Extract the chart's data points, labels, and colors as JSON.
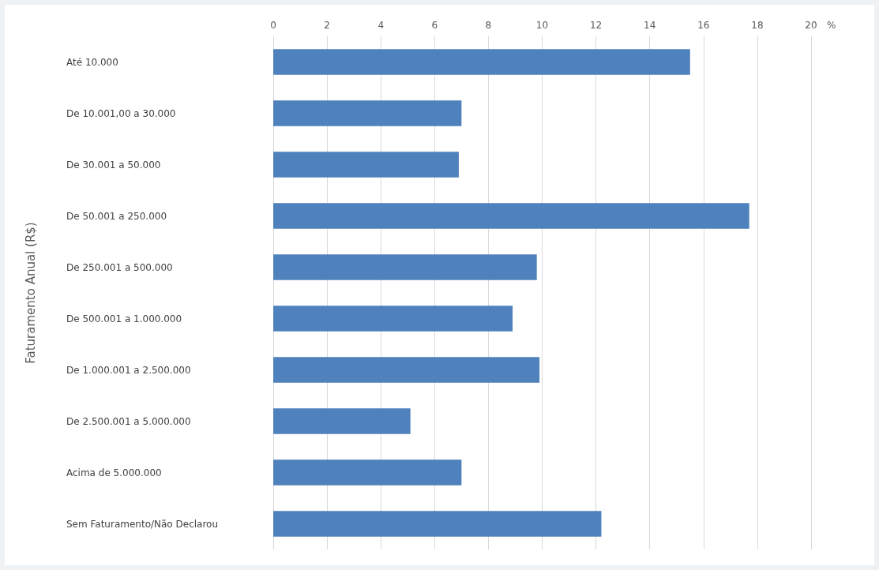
{
  "chart_data": {
    "type": "bar",
    "orientation": "horizontal",
    "ylabel": "Faturamento Anual (R$)",
    "xlabel": "%",
    "categories": [
      "Até 10.000",
      "De 10.001,00 a 30.000",
      "De 30.001 a 50.000",
      "De 50.001 a 250.000",
      "De 250.001 a 500.000",
      "De 500.001 a 1.000.000",
      "De 1.000.001 a 2.500.000",
      "De 2.500.001 a 5.000.000",
      "Acima de 5.000.000",
      "Sem Faturamento/Não Declarou"
    ],
    "values": [
      15.5,
      7.0,
      6.9,
      17.7,
      9.8,
      8.9,
      9.9,
      5.1,
      7.0,
      12.2
    ],
    "color": "#4f81bd",
    "xlim": [
      0,
      20
    ],
    "xticks": [
      0,
      2,
      4,
      6,
      8,
      10,
      12,
      14,
      16,
      18,
      20
    ],
    "grid": "x"
  }
}
